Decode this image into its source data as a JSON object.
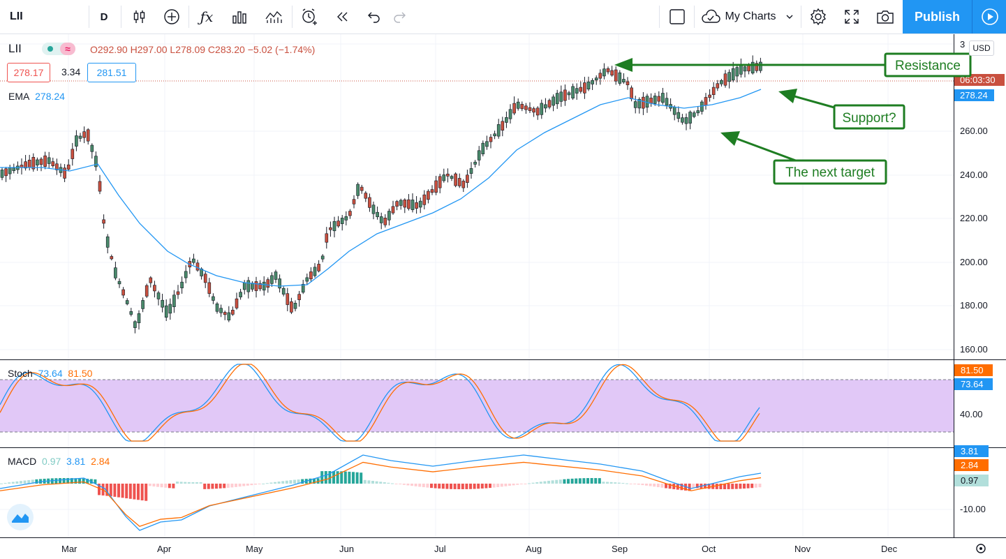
{
  "toolbar": {
    "symbol": "LII",
    "interval": "D",
    "my_charts_label": "My Charts",
    "publish_label": "Publish",
    "icons": [
      "candles-icon",
      "add-compare-icon",
      "indicators-icon",
      "templates-icon",
      "alert-icon",
      "replay-icon",
      "undo-icon",
      "redo-icon",
      "layout-icon",
      "cloud-icon",
      "chevron-down-icon",
      "settings-icon",
      "fullscreen-icon",
      "camera-icon",
      "play-icon"
    ]
  },
  "legend": {
    "ohlc": "O292.90 H297.00 L278.09 C283.20 −5.02 (−1.74%)",
    "bid": "278.17",
    "spread": "3.34",
    "ask": "281.51",
    "ema_label": "EMA",
    "ema_value": "278.24",
    "stoch_label": "Stoch",
    "stoch_k": "73.64",
    "stoch_d": "81.50",
    "macd_label": "MACD",
    "macd_hist": "0.97",
    "macd_line": "3.81",
    "macd_signal": "2.84",
    "currency": "USD"
  },
  "price_axis": {
    "labels": [
      "160.00",
      "180.00",
      "200.00",
      "220.00",
      "240.00",
      "260.00",
      "3"
    ],
    "current_price_label": "06:03:30",
    "ema_label": "278.24",
    "stoch_labels": [
      "40.00"
    ],
    "stoch_k_label": "73.64",
    "stoch_d_label": "81.50",
    "macd_labels": [
      "-10.00"
    ],
    "macd_line_label": "3.81",
    "macd_signal_label": "2.84",
    "macd_hist_label": "0.97"
  },
  "time_axis": [
    "Mar",
    "Apr",
    "May",
    "Jun",
    "Jul",
    "Aug",
    "Sep",
    "Oct",
    "Nov",
    "Dec"
  ],
  "annotations": {
    "resistance": "Resistance",
    "support": "Support?",
    "next_target": "The next target"
  },
  "colors": {
    "up": "#4a8a6b",
    "down": "#c9503f",
    "ema": "#2196f3",
    "stoch_k": "#2196f3",
    "stoch_d": "#ff6d00",
    "stoch_band": "#e1c8f7",
    "annotation": "#1e7d22",
    "accent": "#2196f3"
  }
}
